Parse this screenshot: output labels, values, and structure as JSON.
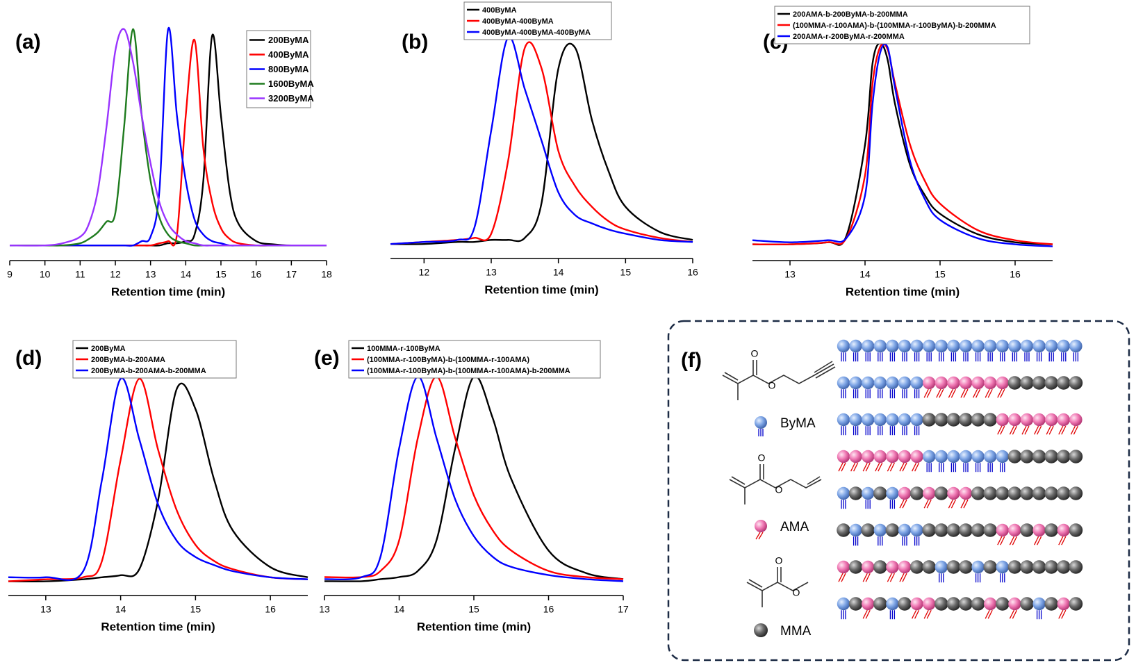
{
  "chart_data": [
    {
      "type": "line",
      "panel_label": "(a)",
      "x_label": "Retention time (min)",
      "legend": "upper right",
      "x": [
        9,
        10,
        10.5,
        11,
        11.25,
        11.5,
        11.75,
        12,
        12.25,
        12.5,
        12.75,
        13,
        13.25,
        13.5,
        13.75,
        14,
        14.25,
        14.5,
        14.75,
        15,
        15.25,
        15.5,
        16,
        16.5,
        17,
        18
      ],
      "series": [
        {
          "name": "200ByMA",
          "color": "#000000",
          "values": [
            0,
            0,
            0,
            0,
            0,
            0,
            0,
            0,
            0,
            0,
            0,
            0,
            0,
            0.01,
            0.01,
            0.02,
            0.05,
            0.3,
            0.97,
            0.6,
            0.25,
            0.1,
            0.02,
            0.005,
            0,
            0
          ]
        },
        {
          "name": "400ByMA",
          "color": "#ff0000",
          "values": [
            0,
            0,
            0,
            0,
            0,
            0,
            0,
            0,
            0,
            0,
            0,
            0,
            0.01,
            0.02,
            0.05,
            0.6,
            0.95,
            0.45,
            0.2,
            0.08,
            0.03,
            0.01,
            0,
            0,
            0,
            0
          ]
        },
        {
          "name": "800ByMA",
          "color": "#0000ff",
          "values": [
            0,
            0,
            0,
            0,
            0,
            0,
            0,
            0,
            0,
            0,
            0.02,
            0.04,
            0.25,
            1.0,
            0.6,
            0.3,
            0.12,
            0.05,
            0.02,
            0.01,
            0,
            0,
            0,
            0,
            0,
            0
          ]
        },
        {
          "name": "1600ByMA",
          "color": "#1e7b1e",
          "values": [
            0,
            0,
            0,
            0.01,
            0.03,
            0.06,
            0.11,
            0.15,
            0.55,
            1.0,
            0.6,
            0.3,
            0.13,
            0.05,
            0.02,
            0.01,
            0,
            0,
            0,
            0,
            0,
            0,
            0,
            0,
            0,
            0
          ]
        },
        {
          "name": "3200ByMA",
          "color": "#9933ff",
          "values": [
            0,
            0,
            0.01,
            0.04,
            0.1,
            0.25,
            0.55,
            0.9,
            1.0,
            0.85,
            0.6,
            0.38,
            0.2,
            0.1,
            0.05,
            0.02,
            0.01,
            0,
            0,
            0,
            0,
            0,
            0,
            0,
            0,
            0
          ]
        }
      ],
      "xlim": [
        9,
        18
      ],
      "xticks": [
        9,
        10,
        11,
        12,
        13,
        14,
        15,
        16,
        17,
        18
      ],
      "ylim": [
        -0.07,
        1.0
      ]
    },
    {
      "type": "line",
      "panel_label": "(b)",
      "x_label": "Retention time (min)",
      "legend": "upper left",
      "x": [
        11.5,
        12,
        12.5,
        12.75,
        13,
        13.25,
        13.5,
        13.75,
        14,
        14.25,
        14.5,
        14.75,
        15,
        15.5,
        16
      ],
      "series": [
        {
          "name": "400ByMA",
          "color": "#000000",
          "values": [
            0,
            0,
            0.01,
            0.01,
            0.02,
            0.02,
            0.03,
            0.2,
            0.85,
            0.95,
            0.6,
            0.35,
            0.18,
            0.06,
            0.02
          ]
        },
        {
          "name": "400ByMA-400ByMA",
          "color": "#ff0000",
          "values": [
            0,
            0.01,
            0.02,
            0.03,
            0.05,
            0.4,
            0.95,
            0.85,
            0.45,
            0.28,
            0.18,
            0.11,
            0.07,
            0.03,
            0.01
          ]
        },
        {
          "name": "400ByMA-400ByMA-400ByMA",
          "color": "#0000ff",
          "values": [
            0,
            0.01,
            0.02,
            0.08,
            0.55,
            1.0,
            0.75,
            0.5,
            0.25,
            0.14,
            0.1,
            0.07,
            0.05,
            0.02,
            0.01
          ]
        }
      ],
      "xlim": [
        11.5,
        16
      ],
      "xticks": [
        12,
        13,
        14,
        15,
        16
      ],
      "ylim": [
        -0.07,
        1.0
      ]
    },
    {
      "type": "line",
      "panel_label": "(c)",
      "x_label": "Retention time (min)",
      "legend": "upper left",
      "x": [
        12.5,
        13,
        13.5,
        13.75,
        14,
        14.1,
        14.2,
        14.3,
        14.4,
        14.6,
        14.8,
        15,
        15.5,
        16,
        16.5
      ],
      "series": [
        {
          "name": "200AMA-b-200ByMA-b-200MMA",
          "color": "#000000",
          "values": [
            0.01,
            0.01,
            0.02,
            0.05,
            0.5,
            0.9,
            1.0,
            0.92,
            0.7,
            0.4,
            0.25,
            0.16,
            0.06,
            0.02,
            0.01
          ]
        },
        {
          "name": "(100MMA-r-100AMA)-b-(100MMA-r-100ByMA)-b-200MMA",
          "color": "#ff0000",
          "values": [
            0.01,
            0.01,
            0.02,
            0.04,
            0.35,
            0.8,
            0.98,
            0.97,
            0.8,
            0.5,
            0.32,
            0.21,
            0.08,
            0.03,
            0.01
          ]
        },
        {
          "name": "200AMA-r-200ByMA-r-200MMA",
          "color": "#0000ff",
          "values": [
            0.03,
            0.02,
            0.03,
            0.04,
            0.25,
            0.7,
            0.95,
            0.98,
            0.78,
            0.42,
            0.23,
            0.13,
            0.04,
            0.01,
            0
          ]
        }
      ],
      "xlim": [
        12.5,
        16.5
      ],
      "xticks": [
        13,
        14,
        15,
        16
      ],
      "ylim": [
        -0.07,
        1.0
      ]
    },
    {
      "type": "line",
      "panel_label": "(d)",
      "x_label": "Retention time (min)",
      "legend": "upper left",
      "x": [
        12.5,
        13,
        13.5,
        13.75,
        14,
        14.25,
        14.5,
        14.75,
        15,
        15.25,
        15.5,
        16,
        16.5
      ],
      "series": [
        {
          "name": "200ByMA",
          "color": "#000000",
          "values": [
            0,
            0,
            0.01,
            0.02,
            0.03,
            0.06,
            0.4,
            0.95,
            0.85,
            0.5,
            0.25,
            0.07,
            0.02
          ]
        },
        {
          "name": "200ByMA-b-200AMA",
          "color": "#ff0000",
          "values": [
            0,
            0.01,
            0.02,
            0.1,
            0.6,
            1.0,
            0.65,
            0.35,
            0.18,
            0.1,
            0.06,
            0.02,
            0.01
          ]
        },
        {
          "name": "200ByMA-b-200AMA-b-200MMA",
          "color": "#0000ff",
          "values": [
            0.02,
            0.02,
            0.05,
            0.5,
            1.0,
            0.7,
            0.38,
            0.2,
            0.12,
            0.08,
            0.05,
            0.02,
            0.01
          ]
        }
      ],
      "xlim": [
        12.5,
        16.5
      ],
      "xticks": [
        13,
        14,
        15,
        16
      ],
      "ylim": [
        -0.07,
        1.0
      ]
    },
    {
      "type": "line",
      "panel_label": "(e)",
      "x_label": "Retention time (min)",
      "legend": "upper left",
      "x": [
        13,
        13.5,
        13.75,
        14,
        14.25,
        14.5,
        14.75,
        15,
        15.25,
        15.5,
        16,
        16.5,
        17
      ],
      "series": [
        {
          "name": "100MMA-r-100ByMA",
          "color": "#000000",
          "values": [
            0,
            0,
            0.01,
            0.02,
            0.05,
            0.2,
            0.65,
            1.0,
            0.8,
            0.5,
            0.15,
            0.04,
            0.01
          ]
        },
        {
          "name": "(100MMA-r-100ByMA)-b-(100MMA-r-100AMA)",
          "color": "#ff0000",
          "values": [
            0.02,
            0.02,
            0.05,
            0.2,
            0.7,
            1.0,
            0.7,
            0.42,
            0.25,
            0.15,
            0.05,
            0.02,
            0.01
          ]
        },
        {
          "name": "(100MMA-r-100ByMA)-b-(100MMA-r-100AMA)-b-200MMA",
          "color": "#0000ff",
          "values": [
            0.01,
            0.02,
            0.12,
            0.65,
            1.0,
            0.7,
            0.4,
            0.22,
            0.12,
            0.07,
            0.03,
            0.01,
            0
          ]
        }
      ],
      "xlim": [
        13,
        17
      ],
      "xticks": [
        13,
        14,
        15,
        16,
        17
      ],
      "ylim": [
        -0.07,
        1.0
      ]
    }
  ],
  "panel_f": {
    "label": "(f)",
    "monomers": [
      "ByMA",
      "AMA",
      "MMA"
    ]
  }
}
